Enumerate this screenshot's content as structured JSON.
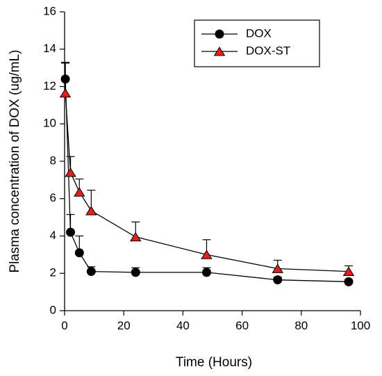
{
  "chart_data": {
    "type": "line",
    "xlabel": "Time (Hours)",
    "ylabel": "Plasma concentration of DOX (ug/mL)",
    "xlim": [
      0,
      100
    ],
    "ylim": [
      0,
      16
    ],
    "xticks": [
      0,
      20,
      40,
      60,
      80,
      100
    ],
    "yticks": [
      0,
      2,
      4,
      6,
      8,
      10,
      12,
      14,
      16
    ],
    "grid": false,
    "legend_position": "top-right",
    "series": [
      {
        "name": "DOX",
        "marker": "circle",
        "color": "#000000",
        "x": [
          0.25,
          2,
          5,
          9,
          24,
          48,
          72,
          96
        ],
        "y": [
          12.4,
          4.2,
          3.1,
          2.1,
          2.05,
          2.05,
          1.65,
          1.55
        ],
        "error": [
          0.9,
          0.95,
          0.9,
          0.25,
          0.25,
          0.25,
          0.15,
          0.1
        ]
      },
      {
        "name": "DOX-ST",
        "marker": "triangle",
        "color": "#e0201c",
        "x": [
          0.25,
          2,
          5,
          9,
          24,
          48,
          72,
          96
        ],
        "y": [
          11.65,
          7.4,
          6.35,
          5.35,
          3.95,
          3.0,
          2.25,
          2.1
        ],
        "error": [
          1.6,
          0.85,
          0.7,
          1.1,
          0.8,
          0.8,
          0.45,
          0.3
        ]
      }
    ]
  }
}
